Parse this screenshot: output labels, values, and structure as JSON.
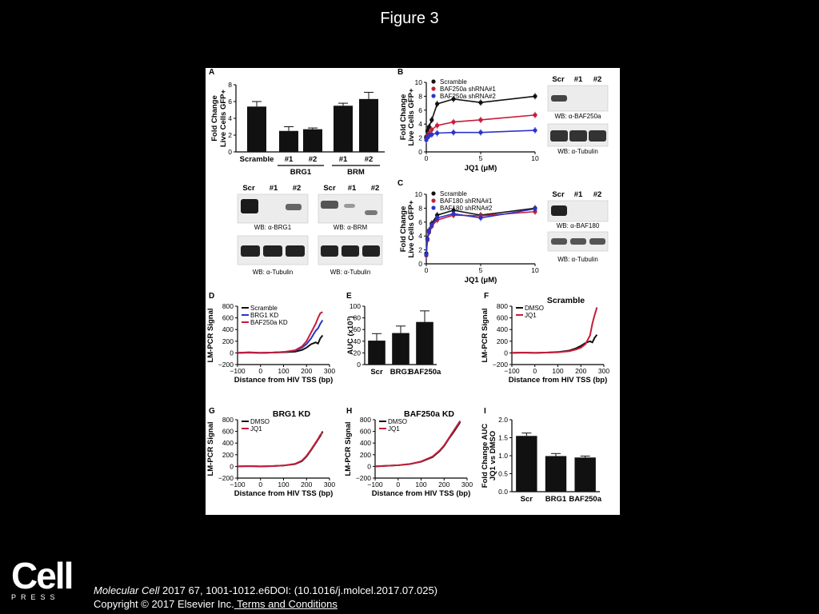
{
  "slide": {
    "title": "Figure 3"
  },
  "footer": {
    "logo_text": "Cell",
    "logo_sub": "PRESS",
    "journal": "Molecular Cell",
    "citation_rest": " 2017 67, 1001-1012.e6DOI: (10.1016/j.molcel.2017.07.025)",
    "copyright": "Copyright © 2017 Elsevier Inc.",
    "terms_link": " Terms and Conditions"
  },
  "colors": {
    "black": "#111111",
    "red": "#c41e3a",
    "blue": "#2b35c8"
  },
  "chart_data": [
    {
      "panel": "A",
      "type": "bar",
      "ylabel": "Fold Change Live Cells GFP+",
      "ylim": [
        0,
        8
      ],
      "yticks": [
        0,
        2,
        4,
        6,
        8
      ],
      "categories": [
        "Scramble",
        "#1",
        "#2",
        "#1",
        "#2"
      ],
      "groups": [
        {
          "label": "BRG1",
          "members": [
            1,
            2
          ]
        },
        {
          "label": "BRM",
          "members": [
            3,
            4
          ]
        }
      ],
      "values": [
        5.4,
        2.5,
        2.7,
        5.5,
        6.3
      ],
      "errors": [
        0.6,
        0.5,
        0.15,
        0.3,
        0.8
      ]
    },
    {
      "panel": "B",
      "type": "line",
      "xlabel": "JQ1 (μM)",
      "ylabel": "Fold Change Live Cells GFP+",
      "xlim": [
        0,
        10
      ],
      "ylim": [
        0,
        10
      ],
      "xticks": [
        0,
        5,
        10
      ],
      "yticks": [
        0,
        2,
        4,
        6,
        8,
        10
      ],
      "series": [
        {
          "name": "Scramble",
          "color": "#111111",
          "x": [
            0,
            0.1,
            0.25,
            0.5,
            1,
            2.5,
            5,
            10
          ],
          "y": [
            2.2,
            3.0,
            3.6,
            4.6,
            6.9,
            7.6,
            7.1,
            8.0
          ]
        },
        {
          "name": "BAF250a shRNA#1",
          "color": "#c41e3a",
          "x": [
            0,
            0.1,
            0.25,
            0.5,
            1,
            2.5,
            5,
            10
          ],
          "y": [
            1.8,
            2.3,
            2.7,
            3.2,
            3.8,
            4.3,
            4.6,
            5.3
          ]
        },
        {
          "name": "BAF250a shRNA#2",
          "color": "#2b35c8",
          "x": [
            0,
            0.1,
            0.25,
            0.5,
            1,
            2.5,
            5,
            10
          ],
          "y": [
            1.7,
            2.1,
            2.3,
            2.5,
            2.7,
            2.8,
            2.8,
            3.1
          ]
        }
      ]
    },
    {
      "panel": "C",
      "type": "line",
      "xlabel": "JQ1 (μM)",
      "ylabel": "Fold Change Live Cells GFP+",
      "xlim": [
        0,
        10
      ],
      "ylim": [
        0,
        10
      ],
      "xticks": [
        0,
        5,
        10
      ],
      "yticks": [
        0,
        2,
        4,
        6,
        8,
        10
      ],
      "series": [
        {
          "name": "Scramble",
          "color": "#111111",
          "x": [
            0,
            0.1,
            0.25,
            0.5,
            1,
            2.5,
            5,
            10
          ],
          "y": [
            1.5,
            3.6,
            4.8,
            5.8,
            7.0,
            7.7,
            7.0,
            8.0
          ]
        },
        {
          "name": "BAF180 shRNA#1",
          "color": "#c41e3a",
          "x": [
            0,
            0.1,
            0.25,
            0.5,
            1,
            2.5,
            5,
            10
          ],
          "y": [
            1.2,
            3.4,
            4.5,
            5.4,
            6.3,
            7.0,
            6.9,
            7.5
          ]
        },
        {
          "name": "BAF180 shRNA#2",
          "color": "#2b35c8",
          "x": [
            0,
            0.1,
            0.25,
            0.5,
            1,
            2.5,
            5,
            10
          ],
          "y": [
            1.3,
            3.5,
            4.7,
            5.6,
            6.6,
            7.2,
            6.6,
            7.9
          ]
        }
      ]
    },
    {
      "panel": "D",
      "type": "line",
      "xlabel": "Distance from HIV TSS (bp)",
      "ylabel": "LM-PCR Signal",
      "xlim": [
        -100,
        300
      ],
      "ylim": [
        -200,
        800
      ],
      "xticks": [
        -100,
        0,
        100,
        200,
        300
      ],
      "yticks": [
        -200,
        0,
        200,
        400,
        600,
        800
      ],
      "series": [
        {
          "name": "Scramble",
          "color": "#111111",
          "x": [
            -100,
            -50,
            0,
            50,
            100,
            150,
            180,
            200,
            220,
            240,
            250,
            260,
            270
          ],
          "y": [
            0,
            5,
            0,
            5,
            10,
            20,
            50,
            90,
            150,
            180,
            160,
            250,
            300
          ]
        },
        {
          "name": "BRG1 KD",
          "color": "#2b35c8",
          "x": [
            -100,
            -50,
            0,
            50,
            100,
            150,
            180,
            200,
            220,
            240,
            250,
            260,
            270
          ],
          "y": [
            0,
            10,
            0,
            5,
            15,
            40,
            90,
            150,
            250,
            380,
            420,
            500,
            560
          ]
        },
        {
          "name": "BAF250a KD",
          "color": "#c41e3a",
          "x": [
            -100,
            -50,
            0,
            50,
            100,
            150,
            180,
            200,
            220,
            240,
            250,
            260,
            270
          ],
          "y": [
            0,
            5,
            0,
            5,
            15,
            45,
            110,
            200,
            350,
            500,
            600,
            680,
            700
          ]
        }
      ]
    },
    {
      "panel": "E",
      "type": "bar",
      "ylabel": "AUC (x10^3)",
      "ylim": [
        0,
        100
      ],
      "yticks": [
        0,
        20,
        40,
        60,
        80,
        100
      ],
      "categories": [
        "Scr",
        "BRG1",
        "BAF250a"
      ],
      "values": [
        41,
        54,
        73
      ],
      "errors": [
        12,
        12,
        19
      ]
    },
    {
      "panel": "F",
      "type": "line",
      "title": "Scramble",
      "xlabel": "Distance from HIV TSS (bp)",
      "ylabel": "LM-PCR Signal",
      "xlim": [
        -100,
        300
      ],
      "ylim": [
        -200,
        800
      ],
      "xticks": [
        -100,
        0,
        100,
        200,
        300
      ],
      "yticks": [
        -200,
        0,
        200,
        400,
        600,
        800
      ],
      "series": [
        {
          "name": "DMSO",
          "color": "#111111",
          "x": [
            -100,
            -50,
            0,
            50,
            100,
            150,
            180,
            200,
            220,
            240,
            250,
            260,
            270
          ],
          "y": [
            0,
            5,
            0,
            5,
            15,
            40,
            80,
            120,
            170,
            200,
            180,
            260,
            310
          ]
        },
        {
          "name": "JQ1",
          "color": "#c41e3a",
          "x": [
            -100,
            -50,
            0,
            50,
            100,
            150,
            180,
            200,
            220,
            240,
            250,
            260,
            270
          ],
          "y": [
            0,
            5,
            0,
            5,
            10,
            30,
            60,
            90,
            150,
            300,
            500,
            650,
            780
          ]
        }
      ]
    },
    {
      "panel": "G",
      "type": "line",
      "title": "BRG1 KD",
      "xlabel": "Distance from HIV TSS (bp)",
      "ylabel": "LM-PCR Signal",
      "xlim": [
        -100,
        300
      ],
      "ylim": [
        -200,
        800
      ],
      "xticks": [
        -100,
        0,
        100,
        200,
        300
      ],
      "yticks": [
        -200,
        0,
        200,
        400,
        600,
        800
      ],
      "series": [
        {
          "name": "DMSO",
          "color": "#111111",
          "x": [
            -100,
            -50,
            0,
            50,
            100,
            150,
            180,
            200,
            220,
            240,
            250,
            260,
            270
          ],
          "y": [
            0,
            5,
            0,
            5,
            15,
            40,
            90,
            170,
            280,
            400,
            460,
            520,
            600
          ]
        },
        {
          "name": "JQ1",
          "color": "#c41e3a",
          "x": [
            -100,
            -50,
            0,
            50,
            100,
            150,
            180,
            200,
            220,
            240,
            250,
            260,
            270
          ],
          "y": [
            0,
            5,
            0,
            5,
            15,
            45,
            100,
            180,
            290,
            410,
            470,
            540,
            580
          ]
        }
      ]
    },
    {
      "panel": "H",
      "type": "line",
      "title": "BAF250a KD",
      "xlabel": "Distance from HIV TSS (bp)",
      "ylabel": "LM-PCR Signal",
      "xlim": [
        -100,
        300
      ],
      "ylim": [
        -200,
        800
      ],
      "xticks": [
        -100,
        0,
        100,
        200,
        300
      ],
      "yticks": [
        -200,
        0,
        200,
        400,
        600,
        800
      ],
      "series": [
        {
          "name": "DMSO",
          "color": "#111111",
          "x": [
            -100,
            -50,
            0,
            50,
            100,
            150,
            180,
            200,
            220,
            240,
            250,
            260,
            270
          ],
          "y": [
            0,
            10,
            20,
            40,
            80,
            160,
            260,
            350,
            470,
            580,
            640,
            700,
            760
          ]
        },
        {
          "name": "JQ1",
          "color": "#c41e3a",
          "x": [
            -100,
            -50,
            0,
            50,
            100,
            150,
            180,
            200,
            220,
            240,
            250,
            260,
            270
          ],
          "y": [
            0,
            10,
            20,
            40,
            85,
            170,
            270,
            360,
            480,
            600,
            660,
            720,
            780
          ]
        }
      ]
    },
    {
      "panel": "I",
      "type": "bar",
      "ylabel": "Fold Change AUC JQ1 vs DMSO",
      "ylim": [
        0,
        2
      ],
      "yticks": [
        0,
        0.5,
        1,
        1.5,
        2
      ],
      "categories": [
        "Scr",
        "BRG1",
        "BAF250a"
      ],
      "values": [
        1.55,
        0.99,
        0.95
      ],
      "errors": [
        0.08,
        0.07,
        0.04
      ]
    }
  ],
  "blots": {
    "A": {
      "lanes": [
        "Scr",
        "#1",
        "#2",
        "Scr",
        "#1",
        "#2"
      ],
      "labels": [
        "WB: α-BRG1",
        "WB: α-BRM",
        "WB: α-Tubulin",
        "WB: α-Tubulin"
      ]
    },
    "B": {
      "lanes": [
        "Scr",
        "#1",
        "#2"
      ],
      "labels": [
        "WB: α-BAF250a",
        "WB: α-Tubulin"
      ]
    },
    "C": {
      "lanes": [
        "Scr",
        "#1",
        "#2"
      ],
      "labels": [
        "WB: α-BAF180",
        "WB: α-Tubulin"
      ]
    }
  }
}
